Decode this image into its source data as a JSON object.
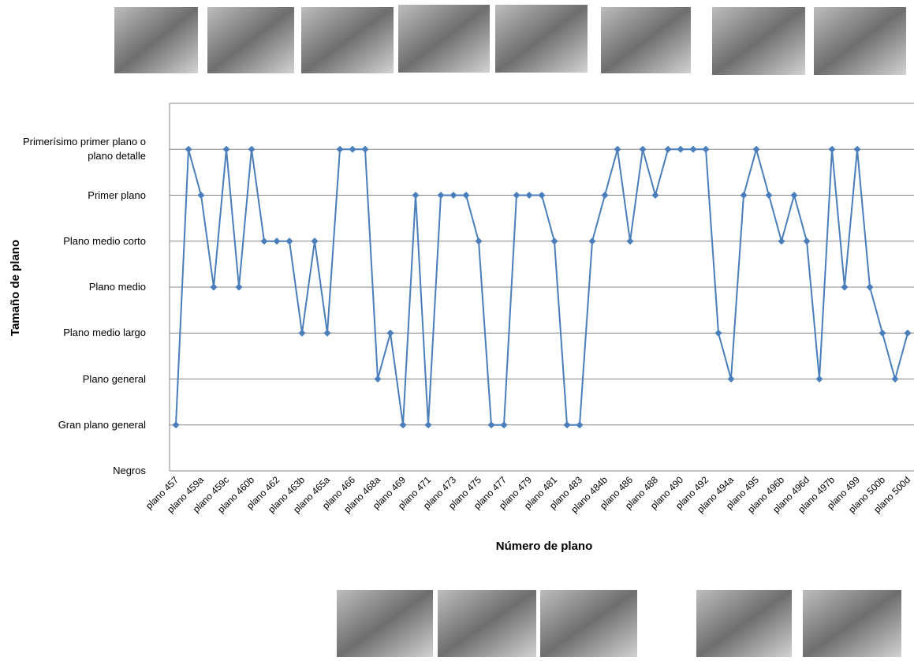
{
  "chart_data": {
    "type": "line",
    "x_label": "Número de plano",
    "y_label": "Tamaño de plano",
    "categories": [
      "plano 457",
      null,
      "plano 459a",
      null,
      "plano 459c",
      null,
      "plano 460b",
      null,
      "plano 462",
      null,
      "plano 463b",
      null,
      "plano 465a",
      null,
      "plano 466",
      null,
      "plano 468a",
      null,
      "plano 469",
      null,
      "plano 471",
      null,
      "plano 473",
      null,
      "plano 475",
      null,
      "plano 477",
      null,
      "plano 479",
      null,
      "plano 481",
      null,
      "plano 483",
      null,
      "plano 484b",
      null,
      "plano 486",
      null,
      "plano 488",
      null,
      "plano 490",
      null,
      "plano 492",
      null,
      "plano 494a",
      null,
      "plano 495",
      null,
      "plano 496b",
      null,
      "plano 496d",
      null,
      "plano 497b",
      null,
      "plano 499",
      null,
      "plano 500b",
      null,
      "plano 500d"
    ],
    "values": [
      1,
      7,
      6,
      4,
      7,
      4,
      7,
      5,
      5,
      5,
      3,
      5,
      3,
      7,
      7,
      7,
      2,
      3,
      1,
      6,
      1,
      6,
      6,
      6,
      5,
      1,
      1,
      6,
      6,
      6,
      5,
      1,
      1,
      5,
      6,
      7,
      5,
      7,
      6,
      7,
      7,
      7,
      7,
      3,
      2,
      6,
      7,
      6,
      5,
      6,
      5,
      2,
      7,
      4,
      7,
      4,
      3,
      2,
      3
    ],
    "color": "#4a7ebb",
    "ylim": [
      0,
      8
    ],
    "yticks": [
      {
        "value": 0,
        "label": "Negros"
      },
      {
        "value": 1,
        "label": "Gran plano general"
      },
      {
        "value": 2,
        "label": "Plano general"
      },
      {
        "value": 3,
        "label": "Plano medio largo"
      },
      {
        "value": 4,
        "label": "Plano medio"
      },
      {
        "value": 5,
        "label": "Plano medio corto"
      },
      {
        "value": 6,
        "label": "Primer plano"
      },
      {
        "value": 7,
        "label": "Primerísimo primer plano o plano detalle"
      }
    ],
    "grid": true
  }
}
